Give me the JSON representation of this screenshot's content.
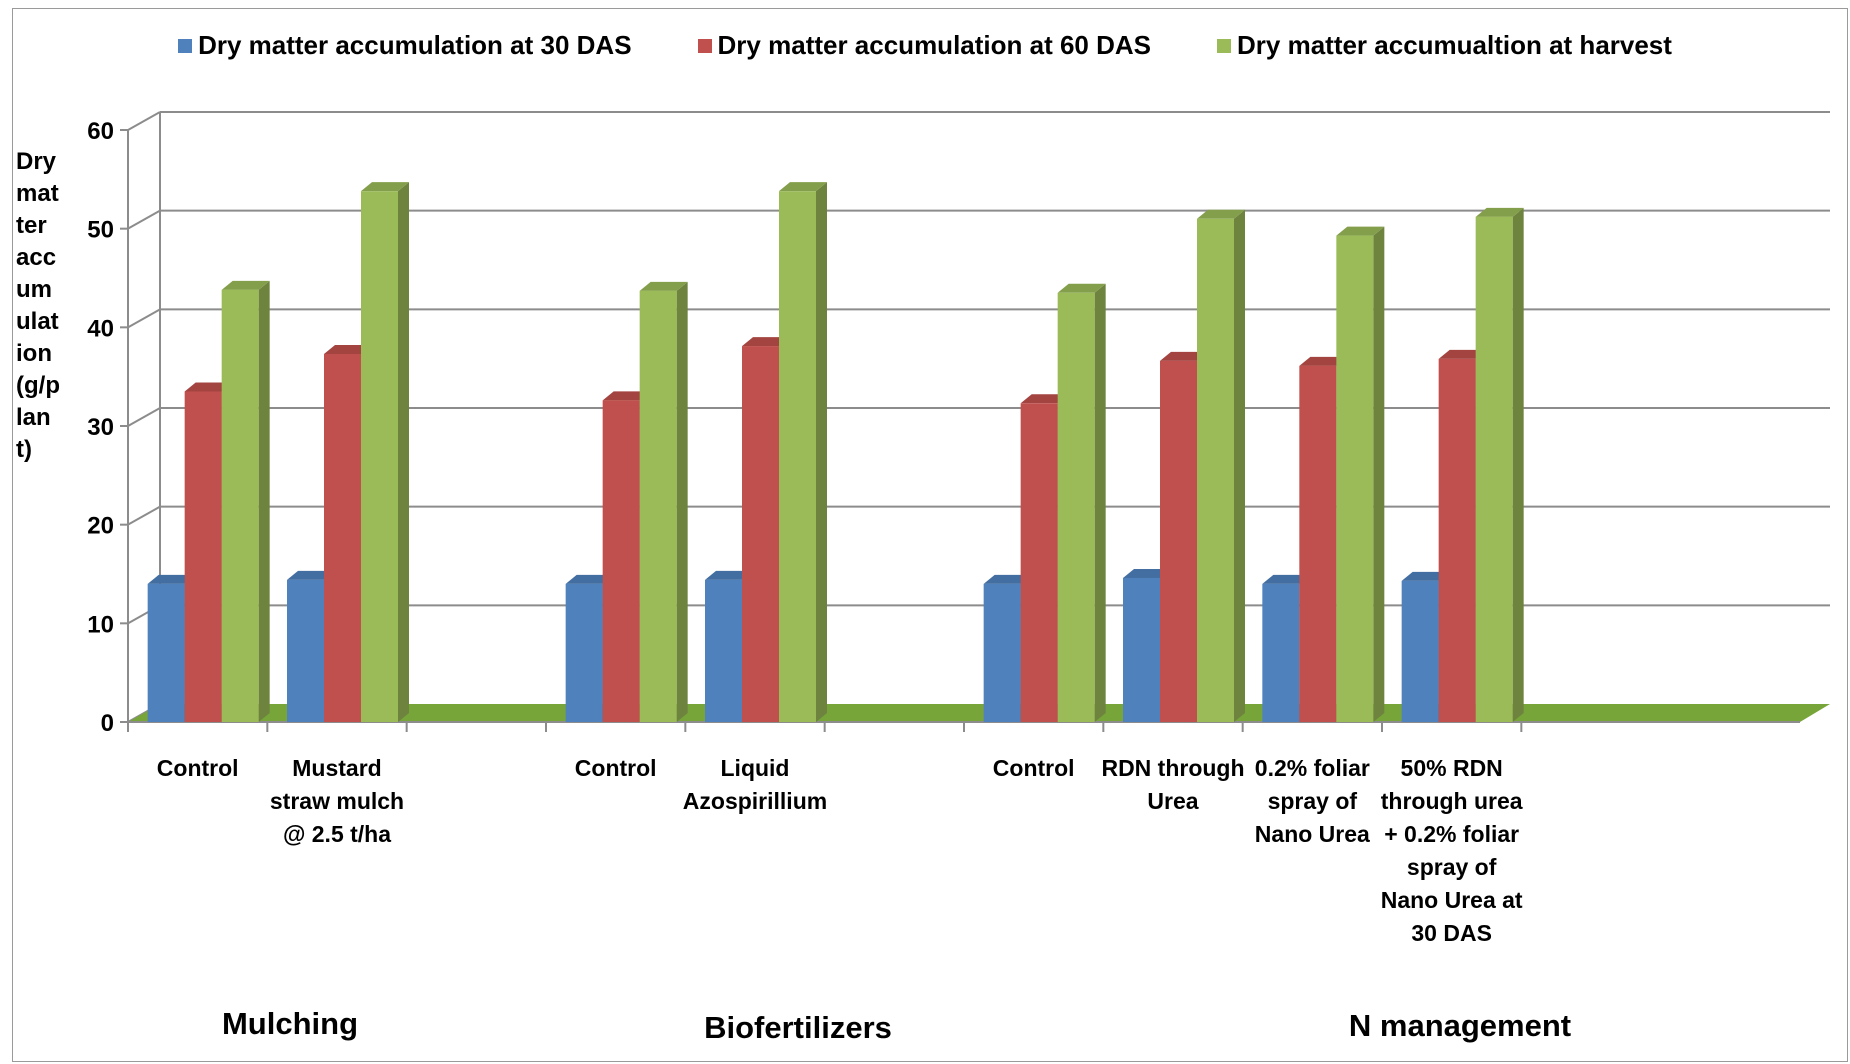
{
  "chart_data": {
    "type": "bar",
    "ylabel": "Dry matter accumulation (g/plant)",
    "ylim": [
      0,
      60
    ],
    "yticks": [
      0,
      10,
      20,
      30,
      40,
      50,
      60
    ],
    "grid": true,
    "legend_position": "top",
    "series": [
      {
        "name": "Dry matter accumulation at 30 DAS",
        "color": "#4F81BD",
        "values": [
          14.0,
          14.4,
          14.0,
          14.4,
          14.0,
          14.6,
          14.0,
          14.3
        ]
      },
      {
        "name": "Dry matter accumulation at 60 DAS",
        "color": "#C0504D",
        "values": [
          33.5,
          37.3,
          32.6,
          38.1,
          32.3,
          36.6,
          36.1,
          36.8
        ]
      },
      {
        "name": "Dry matter accumualtion at harvest",
        "color": "#9BBB59",
        "values": [
          43.8,
          53.8,
          43.7,
          53.8,
          43.5,
          51.0,
          49.3,
          51.2
        ]
      }
    ],
    "categories": [
      "Control",
      "Mustard straw mulch @ 2.5 t/ha",
      "Control",
      "Liquid Azospirillium",
      "Control",
      "RDN through Urea",
      "0.2% foliar spray of Nano Urea",
      "50% RDN through urea + 0.2% foliar spray of Nano Urea at 30 DAS"
    ],
    "category_lines": [
      [
        "Control"
      ],
      [
        "Mustard",
        "straw mulch",
        "@ 2.5 t/ha"
      ],
      [
        "Control"
      ],
      [
        "Liquid",
        "Azospirillium"
      ],
      [
        "Control"
      ],
      [
        "RDN through",
        "Urea"
      ],
      [
        "0.2% foliar",
        "spray of",
        "Nano Urea"
      ],
      [
        "50% RDN",
        "through urea",
        "+ 0.2% foliar",
        "spray of",
        "Nano Urea at",
        "30 DAS"
      ]
    ],
    "slots": [
      0,
      1,
      3,
      4,
      6,
      7,
      8,
      9
    ],
    "groups": [
      {
        "name": "Mulching",
        "slots": [
          0,
          1
        ]
      },
      {
        "name": "Biofertilizers",
        "slots": [
          3,
          4
        ]
      },
      {
        "name": "N management",
        "slots": [
          6,
          7,
          8,
          9
        ]
      }
    ],
    "floor_color": "#77A53A",
    "gridline_color": "#8C8C8C"
  }
}
